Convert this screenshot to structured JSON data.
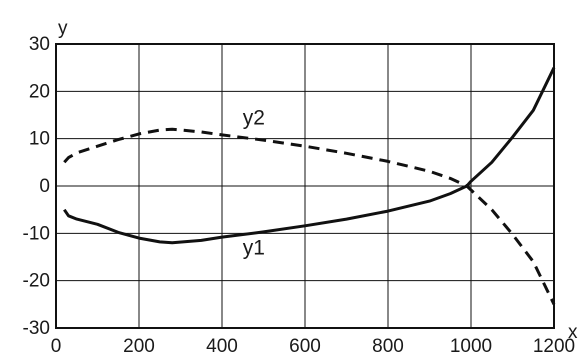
{
  "chart_data": {
    "type": "line",
    "title": "",
    "xlabel": "x",
    "ylabel": "y",
    "xlim": [
      0,
      1200
    ],
    "ylim": [
      -30,
      30
    ],
    "x_ticks": [
      0,
      200,
      400,
      600,
      800,
      1000,
      1200
    ],
    "y_ticks": [
      -30,
      -20,
      -10,
      0,
      10,
      20,
      30
    ],
    "x_tick_labels": [
      "0",
      "200",
      "400",
      "600",
      "800",
      "1000",
      "1200"
    ],
    "y_tick_labels": [
      "-30",
      "-20",
      "-10",
      "0",
      "10",
      "20",
      "30"
    ],
    "grid": true,
    "series": [
      {
        "name": "y1",
        "style": "solid",
        "color": "#111111",
        "label_at": [
          450,
          -14.5
        ],
        "points": [
          [
            20,
            -5
          ],
          [
            30,
            -6.3
          ],
          [
            50,
            -7
          ],
          [
            100,
            -8.1
          ],
          [
            150,
            -9.8
          ],
          [
            200,
            -11
          ],
          [
            250,
            -11.8
          ],
          [
            280,
            -12
          ],
          [
            350,
            -11.5
          ],
          [
            400,
            -10.8
          ],
          [
            500,
            -9.7
          ],
          [
            600,
            -8.4
          ],
          [
            700,
            -7
          ],
          [
            800,
            -5.3
          ],
          [
            900,
            -3.2
          ],
          [
            950,
            -1.6
          ],
          [
            990,
            0
          ],
          [
            1000,
            1
          ],
          [
            1050,
            5
          ],
          [
            1100,
            10.3
          ],
          [
            1150,
            16
          ],
          [
            1200,
            25
          ]
        ]
      },
      {
        "name": "y2",
        "style": "dashed",
        "color": "#111111",
        "label_at": [
          450,
          13
        ],
        "points": [
          [
            20,
            5
          ],
          [
            30,
            6
          ],
          [
            50,
            7
          ],
          [
            100,
            8.4
          ],
          [
            150,
            9.8
          ],
          [
            200,
            11
          ],
          [
            250,
            11.8
          ],
          [
            280,
            12
          ],
          [
            350,
            11.4
          ],
          [
            400,
            10.8
          ],
          [
            500,
            9.7
          ],
          [
            600,
            8.4
          ],
          [
            700,
            6.9
          ],
          [
            800,
            5.2
          ],
          [
            900,
            3.1
          ],
          [
            950,
            1.6
          ],
          [
            990,
            0
          ],
          [
            1050,
            -5
          ],
          [
            1100,
            -10.2
          ],
          [
            1150,
            -16
          ],
          [
            1200,
            -25
          ]
        ]
      }
    ]
  }
}
